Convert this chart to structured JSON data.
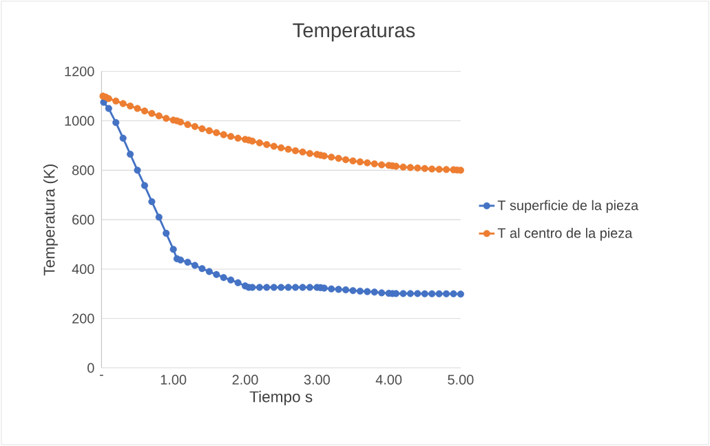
{
  "chart_data": {
    "type": "line",
    "title": "Temperaturas",
    "xlabel": "Tiempo s",
    "ylabel": "Temperatura (K)",
    "xlim": [
      0,
      5
    ],
    "xticks": [
      {
        "value": 0,
        "label": "-"
      },
      {
        "value": 1,
        "label": "1.00"
      },
      {
        "value": 2,
        "label": "2.00"
      },
      {
        "value": 3,
        "label": "3.00"
      },
      {
        "value": 4,
        "label": "4.00"
      },
      {
        "value": 5,
        "label": "5.00"
      }
    ],
    "ylim": [
      0,
      1200
    ],
    "yticks": [
      0,
      200,
      400,
      600,
      800,
      1000,
      1200
    ],
    "grid": "y",
    "legend": "right",
    "marker": "circle",
    "line_style": "solid",
    "series": [
      {
        "name": "T superficie de la pieza",
        "color": "#4472c4",
        "x": [
          0.03,
          0.1,
          0.2,
          0.3,
          0.4,
          0.5,
          0.6,
          0.7,
          0.8,
          0.9,
          1.0,
          1.05,
          1.1,
          1.2,
          1.3,
          1.4,
          1.5,
          1.6,
          1.7,
          1.8,
          1.9,
          2.0,
          2.05,
          2.1,
          2.2,
          2.3,
          2.4,
          2.5,
          2.6,
          2.7,
          2.8,
          2.9,
          3.0,
          3.05,
          3.1,
          3.2,
          3.3,
          3.4,
          3.5,
          3.6,
          3.7,
          3.8,
          3.9,
          4.0,
          4.05,
          4.1,
          4.2,
          4.3,
          4.4,
          4.5,
          4.6,
          4.7,
          4.8,
          4.9,
          5.0
        ],
        "values": [
          1075,
          1050,
          993,
          930,
          865,
          800,
          738,
          673,
          610,
          545,
          480,
          442,
          437,
          428,
          415,
          402,
          390,
          378,
          366,
          356,
          345,
          332,
          326,
          326,
          326,
          326,
          326,
          326,
          326,
          326,
          326,
          326,
          326,
          325,
          323,
          320,
          318,
          316,
          313,
          311,
          309,
          307,
          304,
          302,
          301,
          301,
          301,
          301,
          301,
          300,
          300,
          300,
          300,
          300,
          299
        ]
      },
      {
        "name": "T al centro de la pieza",
        "color": "#ed7d31",
        "x": [
          0.02,
          0.06,
          0.1,
          0.2,
          0.3,
          0.4,
          0.5,
          0.6,
          0.7,
          0.8,
          0.9,
          1.0,
          1.05,
          1.1,
          1.2,
          1.3,
          1.4,
          1.5,
          1.6,
          1.7,
          1.8,
          1.9,
          2.0,
          2.05,
          2.1,
          2.2,
          2.3,
          2.4,
          2.5,
          2.6,
          2.7,
          2.8,
          2.9,
          3.0,
          3.05,
          3.1,
          3.2,
          3.3,
          3.4,
          3.5,
          3.6,
          3.7,
          3.8,
          3.9,
          4.0,
          4.05,
          4.1,
          4.2,
          4.3,
          4.4,
          4.5,
          4.6,
          4.7,
          4.8,
          4.9,
          4.95,
          5.0
        ],
        "values": [
          1100,
          1096,
          1090,
          1080,
          1070,
          1060,
          1050,
          1040,
          1030,
          1020,
          1010,
          1003,
          1000,
          995,
          985,
          977,
          968,
          960,
          952,
          944,
          937,
          930,
          925,
          922,
          918,
          911,
          904,
          897,
          891,
          885,
          879,
          874,
          868,
          864,
          861,
          858,
          853,
          848,
          843,
          838,
          834,
          830,
          826,
          822,
          820,
          818,
          816,
          813,
          811,
          809,
          807,
          805,
          804,
          803,
          802,
          801,
          800
        ]
      }
    ]
  }
}
